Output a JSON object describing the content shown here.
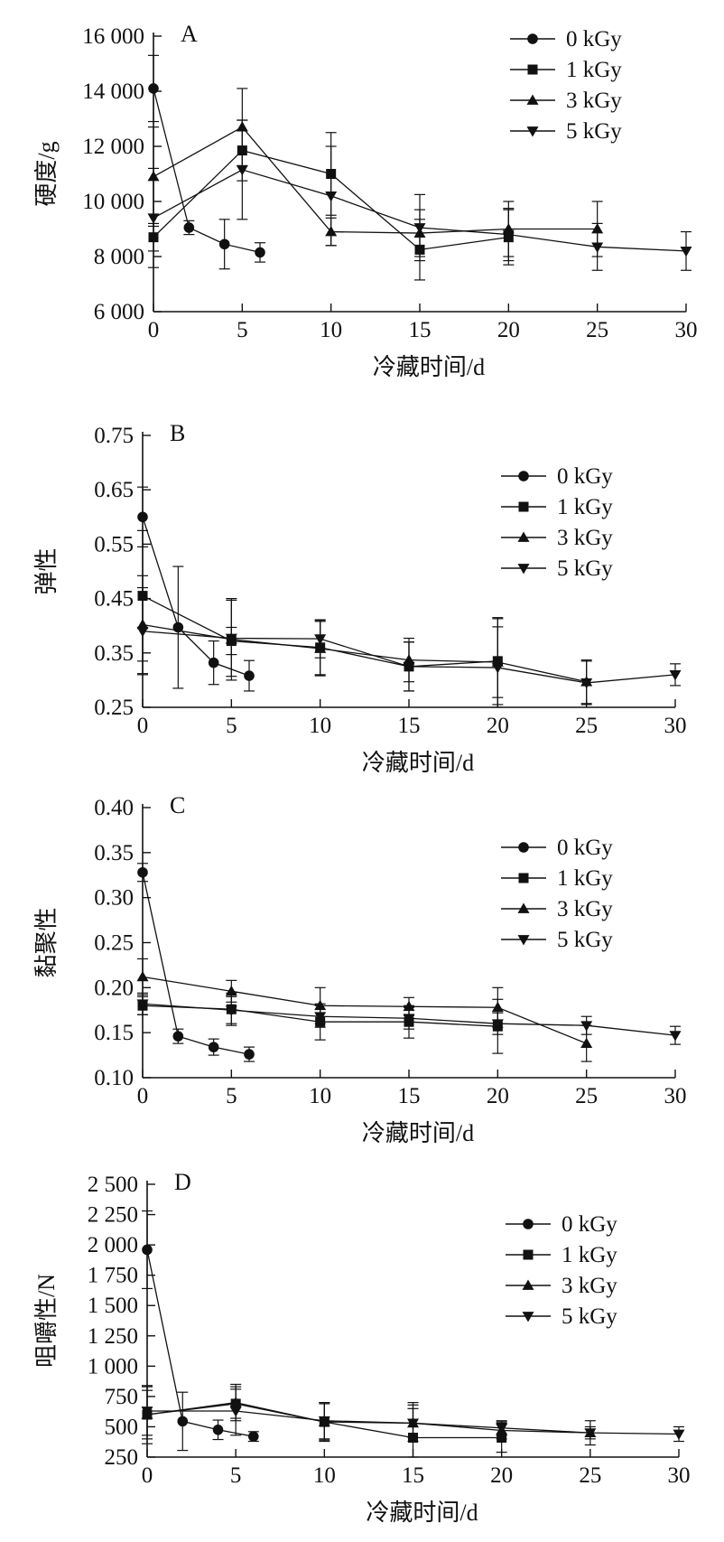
{
  "chart_data": [
    {
      "type": "line",
      "panel_label": "A",
      "ylabel": "硬度/g",
      "xlabel": "冷藏时间/d",
      "x_ticks": [
        "0",
        "5",
        "10",
        "15",
        "20",
        "25",
        "30"
      ],
      "y_ticks": [
        "6 000",
        "8 000",
        "10 000",
        "12 000",
        "14 000",
        "16 000"
      ],
      "xlim": [
        0,
        30
      ],
      "ylim": [
        6000,
        16000
      ],
      "legend_position": "top-right",
      "series": [
        {
          "name": "0 kGy",
          "marker": "circle",
          "x": [
            0,
            2,
            4,
            6
          ],
          "y": [
            14100,
            9050,
            8450,
            8150
          ],
          "err": [
            1200,
            250,
            900,
            350
          ]
        },
        {
          "name": "1 kGy",
          "marker": "square",
          "x": [
            0,
            5,
            10,
            15,
            20
          ],
          "y": [
            8700,
            11850,
            11000,
            8250,
            8700
          ],
          "err": [
            500,
            1100,
            1500,
            1100,
            1000
          ]
        },
        {
          "name": "3 kGy",
          "marker": "triangle-up",
          "x": [
            0,
            5,
            10,
            15,
            20,
            25
          ],
          "y": [
            10900,
            12700,
            8900,
            8850,
            9000,
            9000
          ],
          "err": [
            1800,
            1400,
            500,
            850,
            1000,
            1000
          ]
        },
        {
          "name": "5 kGy",
          "marker": "triangle-down",
          "x": [
            0,
            5,
            10,
            15,
            20,
            25,
            30
          ],
          "y": [
            9400,
            11150,
            10200,
            9050,
            8800,
            8350,
            8200
          ],
          "err": [
            1800,
            1800,
            1800,
            1200,
            950,
            850,
            700
          ]
        }
      ]
    },
    {
      "type": "line",
      "panel_label": "B",
      "ylabel": "弹性",
      "xlabel": "冷藏时间/d",
      "x_ticks": [
        "0",
        "5",
        "10",
        "15",
        "20",
        "25",
        "30"
      ],
      "y_ticks": [
        "0.25",
        "0.35",
        "0.45",
        "0.55",
        "0.65",
        "0.75"
      ],
      "xlim": [
        0,
        30
      ],
      "ylim": [
        0.25,
        0.75
      ],
      "legend_position": "top-right",
      "series": [
        {
          "name": "0 kGy",
          "marker": "circle",
          "x": [
            0,
            2,
            4,
            6
          ],
          "y": [
            0.6,
            0.397,
            0.332,
            0.308
          ],
          "err": [
            0.055,
            0.112,
            0.04,
            0.028
          ]
        },
        {
          "name": "1 kGy",
          "marker": "square",
          "x": [
            0,
            5,
            10,
            15,
            20
          ],
          "y": [
            0.455,
            0.372,
            0.36,
            0.325,
            0.335
          ],
          "err": [
            0.12,
            0.025,
            0.05,
            0.045,
            0.08
          ]
        },
        {
          "name": "3 kGy",
          "marker": "triangle-up",
          "x": [
            0,
            5,
            10,
            15,
            20,
            25
          ],
          "y": [
            0.402,
            0.375,
            0.358,
            0.337,
            0.333,
            0.297
          ],
          "err": [
            0.09,
            0.075,
            0.05,
            0.04,
            0.065,
            0.04
          ]
        },
        {
          "name": "5 kGy",
          "marker": "triangle-down",
          "x": [
            0,
            5,
            10,
            15,
            20,
            25,
            30
          ],
          "y": [
            0.39,
            0.377,
            0.376,
            0.325,
            0.323,
            0.295,
            0.31
          ],
          "err": [
            0.08,
            0.07,
            0.035,
            0.045,
            0.09,
            0.04,
            0.02
          ]
        }
      ]
    },
    {
      "type": "line",
      "panel_label": "C",
      "ylabel": "黏聚性",
      "xlabel": "冷藏时间/d",
      "x_ticks": [
        "0",
        "5",
        "10",
        "15",
        "20",
        "25",
        "30"
      ],
      "y_ticks": [
        "0.10",
        "0.15",
        "0.20",
        "0.25",
        "0.30",
        "0.35",
        "0.40"
      ],
      "xlim": [
        0,
        30
      ],
      "ylim": [
        0.1,
        0.4
      ],
      "legend_position": "top-right",
      "series": [
        {
          "name": "0 kGy",
          "marker": "circle",
          "x": [
            0,
            2,
            4,
            6
          ],
          "y": [
            0.328,
            0.146,
            0.134,
            0.126
          ],
          "err": [
            0.01,
            0.008,
            0.009,
            0.008
          ]
        },
        {
          "name": "1 kGy",
          "marker": "square",
          "x": [
            0,
            5,
            10,
            15,
            20
          ],
          "y": [
            0.18,
            0.176,
            0.162,
            0.162,
            0.157
          ],
          "err": [
            0.01,
            0.018,
            0.02,
            0.018,
            0.03
          ]
        },
        {
          "name": "3 kGy",
          "marker": "triangle-up",
          "x": [
            0,
            5,
            10,
            15,
            20,
            25
          ],
          "y": [
            0.212,
            0.196,
            0.18,
            0.179,
            0.178,
            0.138
          ],
          "err": [
            0.02,
            0.012,
            0.02,
            0.01,
            0.022,
            0.02
          ]
        },
        {
          "name": "5 kGy",
          "marker": "triangle-down",
          "x": [
            0,
            5,
            10,
            15,
            20,
            25,
            30
          ],
          "y": [
            0.182,
            0.175,
            0.168,
            0.166,
            0.16,
            0.158,
            0.147
          ],
          "err": [
            0.012,
            0.015,
            0.012,
            0.012,
            0.012,
            0.01,
            0.01
          ]
        }
      ]
    },
    {
      "type": "line",
      "panel_label": "D",
      "ylabel": "咀嚼性/N",
      "xlabel": "冷藏时间/d",
      "x_ticks": [
        "0",
        "5",
        "10",
        "15",
        "20",
        "25",
        "30"
      ],
      "y_ticks": [
        "250",
        "500",
        "750",
        "1 000",
        "1 250",
        "1 500",
        "1 750",
        "2 000",
        "2 250",
        "2 500"
      ],
      "xlim": [
        0,
        30
      ],
      "ylim": [
        250,
        2500
      ],
      "legend_position": "top-right",
      "series": [
        {
          "name": "0 kGy",
          "marker": "circle",
          "x": [
            0,
            2,
            4,
            6
          ],
          "y": [
            1960,
            545,
            475,
            420
          ],
          "err": [
            320,
            240,
            80,
            40
          ]
        },
        {
          "name": "1 kGy",
          "marker": "square",
          "x": [
            0,
            5,
            10,
            15,
            20
          ],
          "y": [
            600,
            690,
            540,
            410,
            410
          ],
          "err": [
            200,
            120,
            150,
            290,
            120
          ]
        },
        {
          "name": "3 kGy",
          "marker": "triangle-up",
          "x": [
            0,
            5,
            10,
            15,
            20,
            25
          ],
          "y": [
            600,
            700,
            540,
            530,
            470,
            450
          ],
          "err": [
            240,
            150,
            160,
            150,
            70,
            100
          ]
        },
        {
          "name": "5 kGy",
          "marker": "triangle-down",
          "x": [
            0,
            5,
            10,
            15,
            20,
            25,
            30
          ],
          "y": [
            630,
            630,
            550,
            530,
            490,
            450,
            440
          ],
          "err": [
            200,
            200,
            150,
            120,
            60,
            50,
            60
          ]
        }
      ]
    }
  ]
}
